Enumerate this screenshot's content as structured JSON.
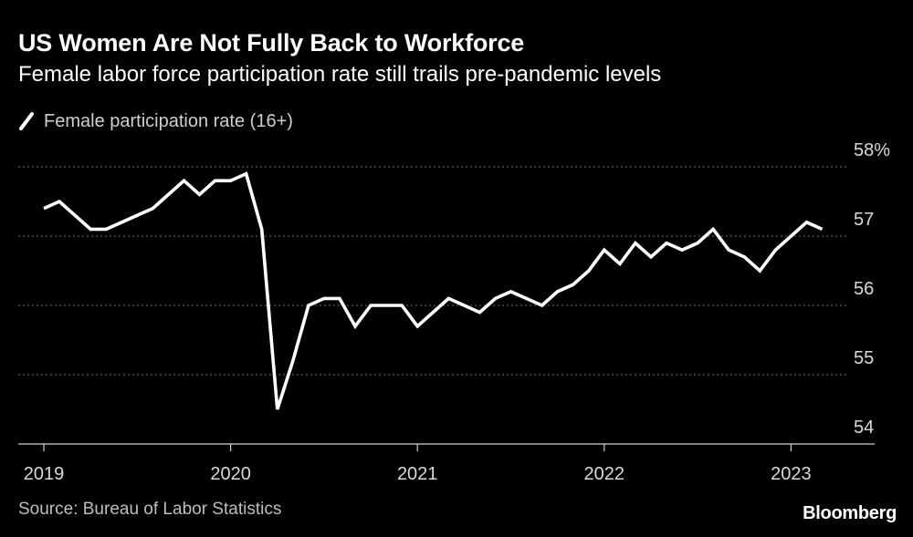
{
  "header": {
    "title": "US Women Are Not Fully Back to Workforce",
    "subtitle": "Female labor force participation rate still trails pre-pandemic levels"
  },
  "legend": {
    "label": "Female participation rate (16+)"
  },
  "footer": {
    "source": "Source: Bureau of Labor Statistics",
    "brand": "Bloomberg"
  },
  "colors": {
    "background": "#000000",
    "line": "#ffffff",
    "grid": "#6e6e6e",
    "axis": "#d0d0d0",
    "tick_text": "#d9d9d9"
  },
  "chart_data": {
    "type": "line",
    "title": "US Women Are Not Fully Back to Workforce",
    "subtitle": "Female labor force participation rate still trails pre-pandemic levels",
    "xlabel": "",
    "ylabel": "",
    "ylim": [
      54,
      58
    ],
    "y_ticks": [
      {
        "value": 58,
        "label": "58%"
      },
      {
        "value": 57,
        "label": "57"
      },
      {
        "value": 56,
        "label": "56"
      },
      {
        "value": 55,
        "label": "55"
      },
      {
        "value": 54,
        "label": "54"
      }
    ],
    "x_ticks": [
      {
        "index": 0,
        "label": "2019"
      },
      {
        "index": 12,
        "label": "2020"
      },
      {
        "index": 24,
        "label": "2021"
      },
      {
        "index": 36,
        "label": "2022"
      },
      {
        "index": 48,
        "label": "2023"
      }
    ],
    "grid": true,
    "legend_position": "top-left",
    "series": [
      {
        "name": "Female participation rate (16+)",
        "x_start": "2019-01",
        "frequency": "monthly",
        "values": [
          57.4,
          57.5,
          57.3,
          57.1,
          57.1,
          57.2,
          57.3,
          57.4,
          57.6,
          57.8,
          57.6,
          57.8,
          57.8,
          57.9,
          57.1,
          54.5,
          55.2,
          56.0,
          56.1,
          56.1,
          55.7,
          56.0,
          56.0,
          56.0,
          55.7,
          55.9,
          56.1,
          56.0,
          55.9,
          56.1,
          56.2,
          56.1,
          56.0,
          56.2,
          56.3,
          56.5,
          56.8,
          56.6,
          56.9,
          56.7,
          56.9,
          56.8,
          56.9,
          57.1,
          56.8,
          56.7,
          56.5,
          56.8,
          57.0,
          57.2,
          57.1
        ]
      }
    ]
  }
}
